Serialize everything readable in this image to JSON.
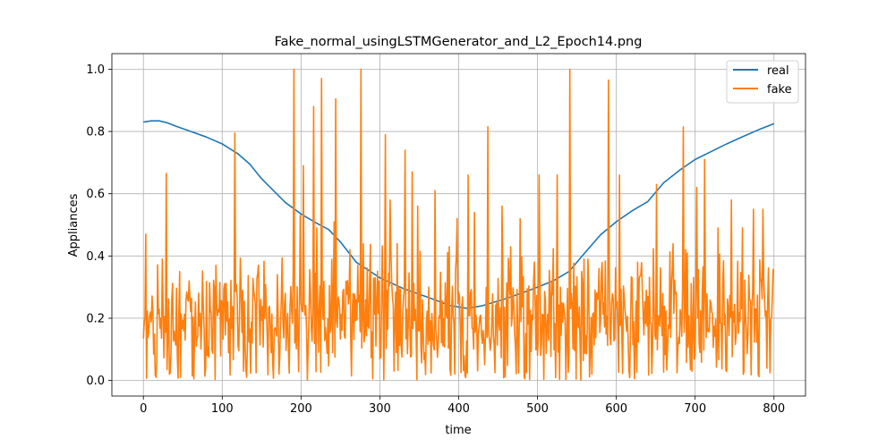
{
  "chart_data": {
    "type": "line",
    "title": "Fake_normal_usingLSTMGenerator_and_L2_Epoch14.png",
    "xlabel": "time",
    "ylabel": "Appliances",
    "xlim": [
      -40,
      840
    ],
    "ylim": [
      -0.05,
      1.05
    ],
    "xticks": [
      0,
      100,
      200,
      300,
      400,
      500,
      600,
      700,
      800
    ],
    "yticks": [
      0.0,
      0.2,
      0.4,
      0.6,
      0.8,
      1.0
    ],
    "ytick_labels": [
      "0.0",
      "0.2",
      "0.4",
      "0.6",
      "0.8",
      "1.0"
    ],
    "grid": true,
    "legend_position": "top-right",
    "series": [
      {
        "name": "real",
        "color": "#1f77b4",
        "points": [
          [
            0,
            0.83
          ],
          [
            10,
            0.834
          ],
          [
            20,
            0.834
          ],
          [
            30,
            0.828
          ],
          [
            40,
            0.818
          ],
          [
            60,
            0.8
          ],
          [
            80,
            0.782
          ],
          [
            100,
            0.76
          ],
          [
            120,
            0.728
          ],
          [
            135,
            0.695
          ],
          [
            150,
            0.648
          ],
          [
            165,
            0.61
          ],
          [
            180,
            0.572
          ],
          [
            200,
            0.535
          ],
          [
            220,
            0.505
          ],
          [
            235,
            0.485
          ],
          [
            250,
            0.445
          ],
          [
            270,
            0.38
          ],
          [
            300,
            0.33
          ],
          [
            330,
            0.295
          ],
          [
            360,
            0.268
          ],
          [
            390,
            0.24
          ],
          [
            410,
            0.232
          ],
          [
            430,
            0.24
          ],
          [
            460,
            0.263
          ],
          [
            490,
            0.29
          ],
          [
            520,
            0.32
          ],
          [
            540,
            0.35
          ],
          [
            560,
            0.41
          ],
          [
            580,
            0.468
          ],
          [
            600,
            0.51
          ],
          [
            620,
            0.545
          ],
          [
            640,
            0.575
          ],
          [
            660,
            0.635
          ],
          [
            680,
            0.675
          ],
          [
            700,
            0.71
          ],
          [
            720,
            0.735
          ],
          [
            740,
            0.76
          ],
          [
            760,
            0.783
          ],
          [
            780,
            0.805
          ],
          [
            800,
            0.825
          ]
        ]
      },
      {
        "name": "fake",
        "color": "#ff7f0e",
        "n_points": 800,
        "seed": 14,
        "peaks": [
          [
            3,
            0.47
          ],
          [
            24,
            0.39
          ],
          [
            29,
            0.665
          ],
          [
            46,
            0.35
          ],
          [
            58,
            0.32
          ],
          [
            70,
            0.28
          ],
          [
            92,
            0.37
          ],
          [
            116,
            0.795
          ],
          [
            126,
            0.29
          ],
          [
            146,
            0.37
          ],
          [
            170,
            0.34
          ],
          [
            180,
            0.28
          ],
          [
            191,
            1.0
          ],
          [
            199,
            0.53
          ],
          [
            203,
            0.69
          ],
          [
            216,
            0.88
          ],
          [
            220,
            0.49
          ],
          [
            226,
            0.97
          ],
          [
            242,
            0.51
          ],
          [
            244,
            0.905
          ],
          [
            262,
            0.42
          ],
          [
            272,
            0.37
          ],
          [
            276,
            1.0
          ],
          [
            294,
            0.33
          ],
          [
            307,
            0.79
          ],
          [
            313,
            0.58
          ],
          [
            322,
            0.44
          ],
          [
            332,
            0.74
          ],
          [
            341,
            0.67
          ],
          [
            348,
            0.56
          ],
          [
            362,
            0.3
          ],
          [
            370,
            0.61
          ],
          [
            388,
            0.43
          ],
          [
            398,
            0.52
          ],
          [
            412,
            0.66
          ],
          [
            420,
            0.54
          ],
          [
            437,
            0.815
          ],
          [
            455,
            0.56
          ],
          [
            466,
            0.43
          ],
          [
            478,
            0.52
          ],
          [
            496,
            0.38
          ],
          [
            502,
            0.66
          ],
          [
            510,
            0.26
          ],
          [
            518,
            0.32
          ],
          [
            525,
            0.66
          ],
          [
            541,
            1.0
          ],
          [
            556,
            0.35
          ],
          [
            564,
            0.39
          ],
          [
            578,
            0.36
          ],
          [
            590,
            0.965
          ],
          [
            594,
            0.25
          ],
          [
            604,
            0.66
          ],
          [
            620,
            0.33
          ],
          [
            627,
            0.38
          ],
          [
            638,
            0.29
          ],
          [
            651,
            0.63
          ],
          [
            670,
            0.31
          ],
          [
            685,
            0.815
          ],
          [
            702,
            0.62
          ],
          [
            712,
            0.71
          ],
          [
            729,
            0.49
          ],
          [
            746,
            0.58
          ],
          [
            760,
            0.49
          ],
          [
            774,
            0.55
          ],
          [
            786,
            0.55
          ],
          [
            800,
            0.36
          ]
        ]
      }
    ],
    "legend": [
      {
        "label": "real",
        "color": "#1f77b4"
      },
      {
        "label": "fake",
        "color": "#ff7f0e"
      }
    ]
  }
}
